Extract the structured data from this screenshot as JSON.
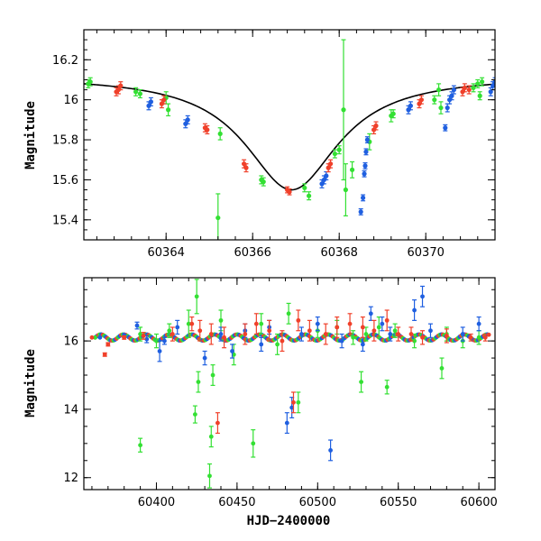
{
  "colors": {
    "green": "#33e033",
    "blue": "#1f5fe0",
    "red": "#f0402a",
    "model": "#000000"
  },
  "chart_data": [
    {
      "type": "scatter",
      "ylabel": "Magnitude",
      "xlabel": "",
      "xlim": [
        60362.1,
        60371.6
      ],
      "ylim": [
        16.35,
        15.3
      ],
      "x_ticks": [
        60364,
        60366,
        60368,
        60370
      ],
      "y_ticks": [
        15.4,
        15.6,
        15.8,
        16,
        16.2
      ],
      "model": {
        "t0": 60366.9,
        "peak": 15.55,
        "base": 16.12,
        "tau": 1.32
      },
      "series": [
        {
          "color": "green",
          "points": [
            [
              60362.2,
              16.08,
              0.02
            ],
            [
              60362.25,
              16.09,
              0.02
            ],
            [
              60363.3,
              16.04,
              0.02
            ],
            [
              60363.4,
              16.03,
              0.02
            ],
            [
              60364.0,
              16.01,
              0.03
            ],
            [
              60364.05,
              15.95,
              0.03
            ],
            [
              60365.2,
              15.41,
              0.12
            ],
            [
              60365.25,
              15.83,
              0.03
            ],
            [
              60366.2,
              15.6,
              0.02
            ],
            [
              60366.25,
              15.59,
              0.02
            ],
            [
              60367.2,
              15.56,
              0.02
            ],
            [
              60367.3,
              15.52,
              0.02
            ],
            [
              60367.9,
              15.73,
              0.02
            ],
            [
              60368.0,
              15.75,
              0.02
            ],
            [
              60368.1,
              15.95,
              0.35
            ],
            [
              60368.15,
              15.55,
              0.13
            ],
            [
              60368.3,
              15.65,
              0.04
            ],
            [
              60368.7,
              15.79,
              0.04
            ],
            [
              60369.2,
              15.92,
              0.03
            ],
            [
              60369.25,
              15.93,
              0.02
            ],
            [
              60370.2,
              16.0,
              0.02
            ],
            [
              60370.3,
              16.05,
              0.03
            ],
            [
              60370.35,
              15.96,
              0.03
            ],
            [
              60371.1,
              16.06,
              0.02
            ],
            [
              60371.2,
              16.08,
              0.02
            ],
            [
              60371.25,
              16.02,
              0.02
            ],
            [
              60371.3,
              16.09,
              0.02
            ]
          ]
        },
        {
          "color": "blue",
          "points": [
            [
              60363.6,
              15.97,
              0.02
            ],
            [
              60363.65,
              15.99,
              0.02
            ],
            [
              60364.45,
              15.88,
              0.02
            ],
            [
              60364.5,
              15.9,
              0.02
            ],
            [
              60367.6,
              15.58,
              0.02
            ],
            [
              60367.65,
              15.6,
              0.02
            ],
            [
              60367.7,
              15.62,
              0.02
            ],
            [
              60368.5,
              15.44,
              0.015
            ],
            [
              60368.55,
              15.51,
              0.015
            ],
            [
              60368.58,
              15.63,
              0.015
            ],
            [
              60368.6,
              15.67,
              0.015
            ],
            [
              60368.62,
              15.74,
              0.015
            ],
            [
              60368.65,
              15.8,
              0.015
            ],
            [
              60369.6,
              15.95,
              0.02
            ],
            [
              60369.65,
              15.97,
              0.02
            ],
            [
              60370.45,
              15.86,
              0.015
            ],
            [
              60370.5,
              15.96,
              0.02
            ],
            [
              60370.55,
              16.0,
              0.02
            ],
            [
              60370.6,
              16.02,
              0.02
            ],
            [
              60370.65,
              16.05,
              0.02
            ],
            [
              60371.5,
              16.04,
              0.02
            ],
            [
              60371.55,
              16.07,
              0.02
            ],
            [
              60371.6,
              16.09,
              0.02
            ]
          ]
        },
        {
          "color": "red",
          "points": [
            [
              60362.85,
              16.04,
              0.02
            ],
            [
              60362.9,
              16.05,
              0.02
            ],
            [
              60362.95,
              16.07,
              0.02
            ],
            [
              60363.9,
              15.98,
              0.02
            ],
            [
              60363.95,
              16.0,
              0.02
            ],
            [
              60364.9,
              15.86,
              0.02
            ],
            [
              60364.95,
              15.85,
              0.02
            ],
            [
              60365.8,
              15.68,
              0.02
            ],
            [
              60365.85,
              15.66,
              0.02
            ],
            [
              60366.8,
              15.55,
              0.015
            ],
            [
              60366.85,
              15.54,
              0.015
            ],
            [
              60367.75,
              15.66,
              0.02
            ],
            [
              60367.8,
              15.68,
              0.02
            ],
            [
              60368.8,
              15.85,
              0.02
            ],
            [
              60368.85,
              15.87,
              0.02
            ],
            [
              60369.85,
              15.98,
              0.02
            ],
            [
              60369.9,
              16.0,
              0.02
            ],
            [
              60370.85,
              16.04,
              0.02
            ],
            [
              60370.9,
              16.06,
              0.02
            ],
            [
              60371.0,
              16.05,
              0.02
            ]
          ]
        }
      ]
    },
    {
      "type": "scatter",
      "ylabel": "Magnitude",
      "xlabel": "HJD−2400000",
      "xlim": [
        60355,
        60610
      ],
      "ylim": [
        17.85,
        11.65
      ],
      "x_ticks": [
        60400,
        60450,
        60500,
        60550,
        60600
      ],
      "y_ticks": [
        12,
        14,
        16
      ],
      "baseline": 16.1,
      "series": [
        {
          "color": "green",
          "points": [
            [
              60362,
              16.1,
              0.03
            ],
            [
              60390,
              12.95,
              0.2
            ],
            [
              60390,
              16.2,
              0.2
            ],
            [
              60400,
              16.0,
              0.2
            ],
            [
              60408,
              16.3,
              0.2
            ],
            [
              60420,
              16.5,
              0.4
            ],
            [
              60424,
              13.85,
              0.25
            ],
            [
              60425,
              17.3,
              0.5
            ],
            [
              60426,
              14.8,
              0.3
            ],
            [
              60433,
              12.05,
              0.35
            ],
            [
              60434,
              13.2,
              0.3
            ],
            [
              60435,
              15.0,
              0.3
            ],
            [
              60440,
              16.6,
              0.3
            ],
            [
              60448,
              15.6,
              0.3
            ],
            [
              60460,
              13.0,
              0.4
            ],
            [
              60465,
              16.5,
              0.3
            ],
            [
              60475,
              15.9,
              0.3
            ],
            [
              60482,
              16.8,
              0.3
            ],
            [
              60488,
              14.2,
              0.3
            ],
            [
              60500,
              16.3,
              0.2
            ],
            [
              60512,
              16.4,
              0.2
            ],
            [
              60522,
              16.1,
              0.2
            ],
            [
              60527,
              14.8,
              0.3
            ],
            [
              60530,
              16.2,
              0.2
            ],
            [
              60538,
              16.4,
              0.3
            ],
            [
              60543,
              14.65,
              0.2
            ],
            [
              60548,
              16.3,
              0.2
            ],
            [
              60560,
              16.0,
              0.2
            ],
            [
              60577,
              15.2,
              0.3
            ],
            [
              60580,
              16.2,
              0.2
            ],
            [
              60590,
              16.0,
              0.2
            ],
            [
              60600,
              16.1,
              0.2
            ]
          ]
        },
        {
          "color": "blue",
          "points": [
            [
              60365,
              16.1,
              0.03
            ],
            [
              60380,
              16.15,
              0.05
            ],
            [
              60388,
              16.45,
              0.1
            ],
            [
              60394,
              16.05,
              0.1
            ],
            [
              60402,
              15.7,
              0.3
            ],
            [
              60405,
              16.0,
              0.1
            ],
            [
              60413,
              16.4,
              0.2
            ],
            [
              60430,
              15.5,
              0.2
            ],
            [
              60440,
              16.2,
              0.2
            ],
            [
              60447,
              15.7,
              0.2
            ],
            [
              60455,
              16.3,
              0.2
            ],
            [
              60465,
              15.9,
              0.2
            ],
            [
              60470,
              16.4,
              0.2
            ],
            [
              60481,
              13.6,
              0.3
            ],
            [
              60484,
              14.05,
              0.3
            ],
            [
              60490,
              16.2,
              0.2
            ],
            [
              60500,
              16.5,
              0.2
            ],
            [
              60508,
              12.8,
              0.3
            ],
            [
              60515,
              16.0,
              0.2
            ],
            [
              60528,
              15.9,
              0.2
            ],
            [
              60533,
              16.8,
              0.2
            ],
            [
              60540,
              16.5,
              0.2
            ],
            [
              60545,
              16.2,
              0.2
            ],
            [
              60560,
              16.9,
              0.3
            ],
            [
              60565,
              17.3,
              0.3
            ],
            [
              60570,
              16.3,
              0.2
            ],
            [
              60590,
              16.2,
              0.2
            ],
            [
              60600,
              16.5,
              0.2
            ]
          ]
        },
        {
          "color": "red",
          "points": [
            [
              60360,
              16.1,
              0.03
            ],
            [
              60368,
              15.6,
              0.05
            ],
            [
              60370,
              15.9,
              0.05
            ],
            [
              60380,
              16.1,
              0.05
            ],
            [
              60392,
              16.15,
              0.1
            ],
            [
              60410,
              16.2,
              0.2
            ],
            [
              60422,
              16.5,
              0.2
            ],
            [
              60427,
              16.3,
              0.3
            ],
            [
              60434,
              16.2,
              0.3
            ],
            [
              60438,
              13.6,
              0.3
            ],
            [
              60442,
              16.1,
              0.3
            ],
            [
              60455,
              16.2,
              0.3
            ],
            [
              60462,
              16.5,
              0.3
            ],
            [
              60470,
              16.3,
              0.3
            ],
            [
              60478,
              16.0,
              0.3
            ],
            [
              60485,
              14.2,
              0.3
            ],
            [
              60488,
              16.6,
              0.3
            ],
            [
              60495,
              16.3,
              0.3
            ],
            [
              60505,
              16.2,
              0.3
            ],
            [
              60512,
              16.4,
              0.3
            ],
            [
              60520,
              16.5,
              0.3
            ],
            [
              60528,
              16.4,
              0.3
            ],
            [
              60535,
              16.3,
              0.3
            ],
            [
              60543,
              16.6,
              0.3
            ],
            [
              60550,
              16.2,
              0.2
            ],
            [
              60558,
              16.2,
              0.2
            ],
            [
              60565,
              16.1,
              0.2
            ],
            [
              60580,
              16.15,
              0.2
            ],
            [
              60595,
              16.1,
              0.1
            ],
            [
              60604,
              16.1,
              0.1
            ]
          ]
        }
      ]
    }
  ]
}
